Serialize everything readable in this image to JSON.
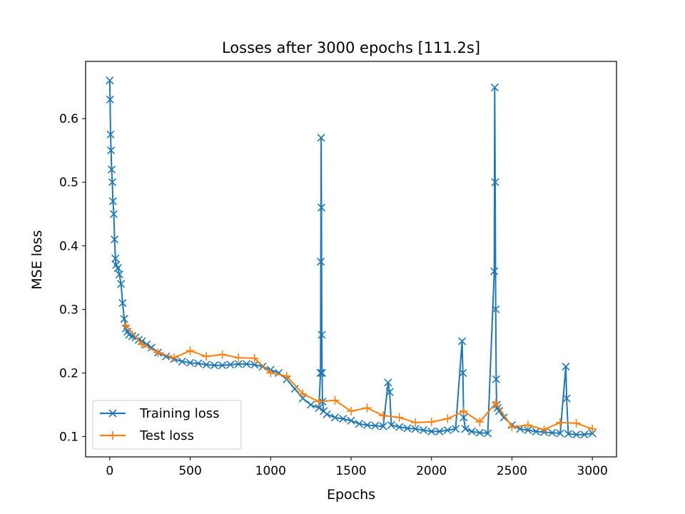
{
  "chart_data": {
    "type": "line",
    "title": "Losses after 3000 epochs [111.2s]",
    "xlabel": "Epochs",
    "ylabel": "MSE loss",
    "xlim": [
      -150,
      3150
    ],
    "ylim": [
      0.068,
      0.69
    ],
    "xticks": [
      0,
      500,
      1000,
      1500,
      2000,
      2500,
      3000
    ],
    "yticks": [
      0.1,
      0.2,
      0.3,
      0.4,
      0.5,
      0.6
    ],
    "grid": false,
    "legend_position": "lower-left",
    "colors": {
      "training": "#1f77b4",
      "test": "#ff7f0e"
    },
    "series": [
      {
        "name": "Training loss",
        "marker": "x",
        "x": [
          0,
          2,
          5,
          8,
          12,
          16,
          20,
          25,
          30,
          35,
          40,
          50,
          60,
          70,
          80,
          90,
          100,
          110,
          120,
          140,
          160,
          180,
          200,
          230,
          260,
          300,
          350,
          400,
          450,
          500,
          550,
          600,
          650,
          700,
          750,
          800,
          850,
          900,
          950,
          1000,
          1050,
          1100,
          1150,
          1200,
          1250,
          1300,
          1310,
          1312,
          1314,
          1316,
          1318,
          1320,
          1322,
          1330,
          1350,
          1400,
          1450,
          1500,
          1550,
          1600,
          1650,
          1700,
          1730,
          1740,
          1750,
          1800,
          1850,
          1900,
          1950,
          2000,
          2050,
          2100,
          2150,
          2190,
          2195,
          2200,
          2210,
          2250,
          2300,
          2350,
          2390,
          2393,
          2396,
          2399,
          2402,
          2405,
          2410,
          2420,
          2450,
          2500,
          2550,
          2600,
          2650,
          2700,
          2750,
          2800,
          2835,
          2840,
          2850,
          2900,
          2950,
          3000
        ],
        "y": [
          0.66,
          0.63,
          0.575,
          0.55,
          0.52,
          0.5,
          0.47,
          0.45,
          0.41,
          0.38,
          0.37,
          0.365,
          0.355,
          0.34,
          0.31,
          0.285,
          0.27,
          0.265,
          0.26,
          0.258,
          0.256,
          0.252,
          0.25,
          0.245,
          0.24,
          0.232,
          0.226,
          0.222,
          0.218,
          0.216,
          0.215,
          0.213,
          0.212,
          0.212,
          0.213,
          0.214,
          0.214,
          0.213,
          0.21,
          0.205,
          0.2,
          0.19,
          0.175,
          0.16,
          0.15,
          0.145,
          0.2,
          0.375,
          0.57,
          0.46,
          0.26,
          0.2,
          0.155,
          0.14,
          0.135,
          0.13,
          0.128,
          0.125,
          0.12,
          0.118,
          0.117,
          0.116,
          0.185,
          0.17,
          0.118,
          0.115,
          0.113,
          0.112,
          0.11,
          0.108,
          0.108,
          0.11,
          0.112,
          0.25,
          0.2,
          0.13,
          0.112,
          0.108,
          0.106,
          0.105,
          0.36,
          0.649,
          0.5,
          0.3,
          0.19,
          0.15,
          0.145,
          0.14,
          0.13,
          0.118,
          0.112,
          0.11,
          0.108,
          0.107,
          0.106,
          0.105,
          0.21,
          0.16,
          0.104,
          0.103,
          0.103,
          0.105
        ]
      },
      {
        "name": "Test loss",
        "marker": "+",
        "x": [
          100,
          200,
          300,
          400,
          500,
          600,
          700,
          800,
          900,
          1000,
          1100,
          1200,
          1300,
          1400,
          1500,
          1600,
          1700,
          1800,
          1900,
          2000,
          2100,
          2200,
          2300,
          2400,
          2500,
          2600,
          2700,
          2800,
          2900,
          3000
        ],
        "y": [
          0.275,
          0.245,
          0.232,
          0.224,
          0.235,
          0.226,
          0.229,
          0.224,
          0.223,
          0.2,
          0.195,
          0.167,
          0.155,
          0.157,
          0.14,
          0.145,
          0.133,
          0.13,
          0.122,
          0.123,
          0.128,
          0.14,
          0.123,
          0.153,
          0.115,
          0.118,
          0.111,
          0.122,
          0.121,
          0.112
        ]
      }
    ]
  }
}
